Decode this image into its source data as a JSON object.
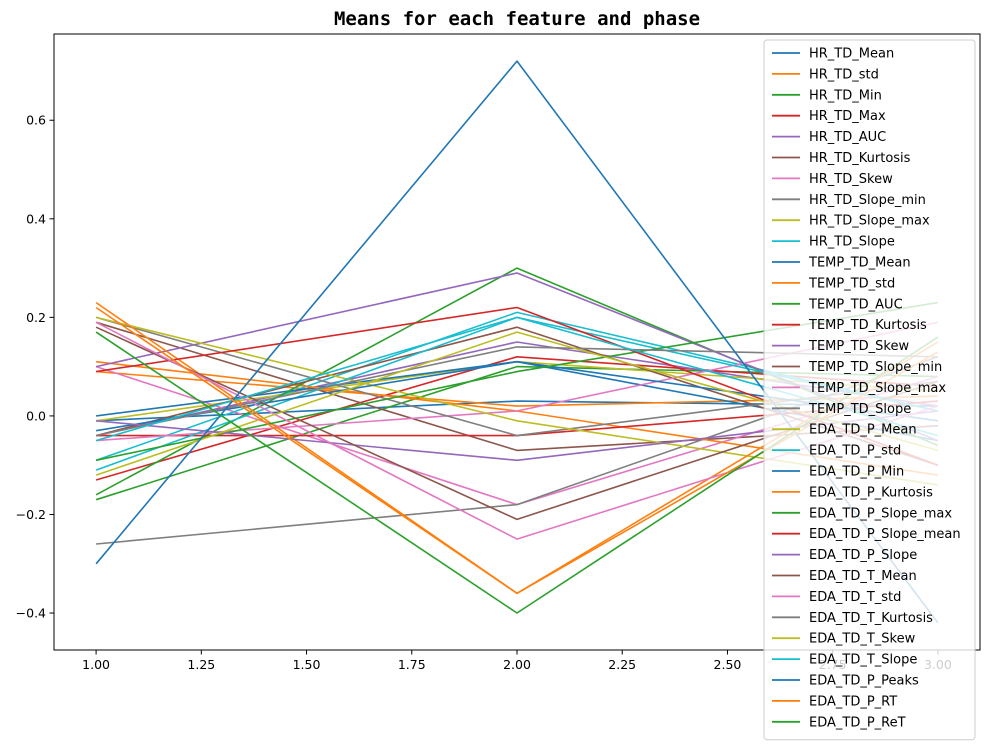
{
  "chart_data": {
    "type": "line",
    "title": "Means for each feature and phase",
    "xlabel": "",
    "ylabel": "",
    "x": [
      1,
      2,
      3
    ],
    "xlim": [
      0.9,
      3.1
    ],
    "ylim": [
      -0.475,
      0.775
    ],
    "xticks": [
      "1.00",
      "1.25",
      "1.50",
      "1.75",
      "2.00",
      "2.25",
      "2.50",
      "2.75",
      "3.00"
    ],
    "xtick_values": [
      1.0,
      1.25,
      1.5,
      1.75,
      2.0,
      2.25,
      2.5,
      2.75,
      3.0
    ],
    "yticks": [
      "−0.4",
      "−0.2",
      "0.0",
      "0.2",
      "0.4",
      "0.6"
    ],
    "ytick_values": [
      -0.4,
      -0.2,
      0.0,
      0.2,
      0.4,
      0.6
    ],
    "grid": false,
    "legend_position": "upper-right",
    "series": [
      {
        "name": "HR_TD_Mean",
        "color": "#1f77b4",
        "values": [
          -0.01,
          0.03,
          0.02
        ]
      },
      {
        "name": "HR_TD_std",
        "color": "#ff7f0e",
        "values": [
          0.09,
          0.02,
          0.04
        ]
      },
      {
        "name": "HR_TD_Min",
        "color": "#2ca02c",
        "values": [
          -0.17,
          0.1,
          0.08
        ]
      },
      {
        "name": "HR_TD_Max",
        "color": "#d62728",
        "values": [
          -0.13,
          0.12,
          0.06
        ]
      },
      {
        "name": "HR_TD_AUC",
        "color": "#9467bd",
        "values": [
          -0.04,
          0.15,
          0.02
        ]
      },
      {
        "name": "HR_TD_Kurtosis",
        "color": "#8c564b",
        "values": [
          0.19,
          -0.07,
          -0.02
        ]
      },
      {
        "name": "HR_TD_Skew",
        "color": "#e377c2",
        "values": [
          0.1,
          -0.18,
          0.08
        ]
      },
      {
        "name": "HR_TD_Slope_min",
        "color": "#7f7f7f",
        "values": [
          -0.26,
          -0.18,
          0.12
        ]
      },
      {
        "name": "HR_TD_Slope_max",
        "color": "#bcbd22",
        "values": [
          -0.01,
          0.11,
          0.05
        ]
      },
      {
        "name": "HR_TD_Slope",
        "color": "#17becf",
        "values": [
          -0.09,
          0.21,
          0.01
        ]
      },
      {
        "name": "TEMP_TD_Mean",
        "color": "#1f77b4",
        "values": [
          0.0,
          0.11,
          -0.05
        ]
      },
      {
        "name": "TEMP_TD_std",
        "color": "#ff7f0e",
        "values": [
          0.11,
          0.01,
          -0.12
        ]
      },
      {
        "name": "TEMP_TD_AUC",
        "color": "#2ca02c",
        "values": [
          -0.16,
          0.3,
          -0.06
        ]
      },
      {
        "name": "TEMP_TD_Kurtosis",
        "color": "#d62728",
        "values": [
          -0.04,
          -0.04,
          0.03
        ]
      },
      {
        "name": "TEMP_TD_Skew",
        "color": "#9467bd",
        "values": [
          0.1,
          0.29,
          -0.05
        ]
      },
      {
        "name": "TEMP_TD_Slope_min",
        "color": "#8c564b",
        "values": [
          -0.04,
          0.18,
          -0.1
        ]
      },
      {
        "name": "TEMP_TD_Slope_max",
        "color": "#e377c2",
        "values": [
          -0.05,
          0.01,
          0.19
        ]
      },
      {
        "name": "TEMP_TD_Slope",
        "color": "#7f7f7f",
        "values": [
          0.2,
          -0.04,
          0.07
        ]
      },
      {
        "name": "EDA_TD_P_Mean",
        "color": "#bcbd22",
        "values": [
          0.2,
          -0.01,
          -0.14
        ]
      },
      {
        "name": "EDA_TD_P_std",
        "color": "#17becf",
        "values": [
          -0.11,
          0.2,
          0.01
        ]
      },
      {
        "name": "EDA_TD_P_Min",
        "color": "#1f77b4",
        "values": [
          -0.03,
          0.11,
          -0.01
        ]
      },
      {
        "name": "EDA_TD_P_Kurtosis",
        "color": "#ff7f0e",
        "values": [
          0.23,
          -0.36,
          0.15
        ]
      },
      {
        "name": "EDA_TD_P_Slope_max",
        "color": "#2ca02c",
        "values": [
          -0.09,
          0.09,
          0.23
        ]
      },
      {
        "name": "EDA_TD_P_Slope_mean",
        "color": "#d62728",
        "values": [
          0.09,
          0.22,
          -0.1
        ]
      },
      {
        "name": "EDA_TD_P_Slope",
        "color": "#9467bd",
        "values": [
          -0.01,
          -0.09,
          0.01
        ]
      },
      {
        "name": "EDA_TD_T_Mean",
        "color": "#8c564b",
        "values": [
          0.18,
          -0.21,
          0.07
        ]
      },
      {
        "name": "EDA_TD_T_std",
        "color": "#e377c2",
        "values": [
          0.19,
          -0.25,
          0.02
        ]
      },
      {
        "name": "EDA_TD_T_Kurtosis",
        "color": "#7f7f7f",
        "values": [
          -0.04,
          0.14,
          0.12
        ]
      },
      {
        "name": "EDA_TD_T_Skew",
        "color": "#bcbd22",
        "values": [
          -0.12,
          0.17,
          -0.07
        ]
      },
      {
        "name": "EDA_TD_T_Slope",
        "color": "#17becf",
        "values": [
          -0.05,
          0.2,
          -0.04
        ]
      },
      {
        "name": "EDA_TD_P_Peaks",
        "color": "#1f77b4",
        "values": [
          -0.3,
          0.72,
          -0.42
        ]
      },
      {
        "name": "EDA_TD_P_RT",
        "color": "#ff7f0e",
        "values": [
          0.22,
          -0.36,
          0.13
        ]
      },
      {
        "name": "EDA_TD_P_ReT",
        "color": "#2ca02c",
        "values": [
          0.17,
          -0.4,
          0.16
        ]
      }
    ]
  }
}
